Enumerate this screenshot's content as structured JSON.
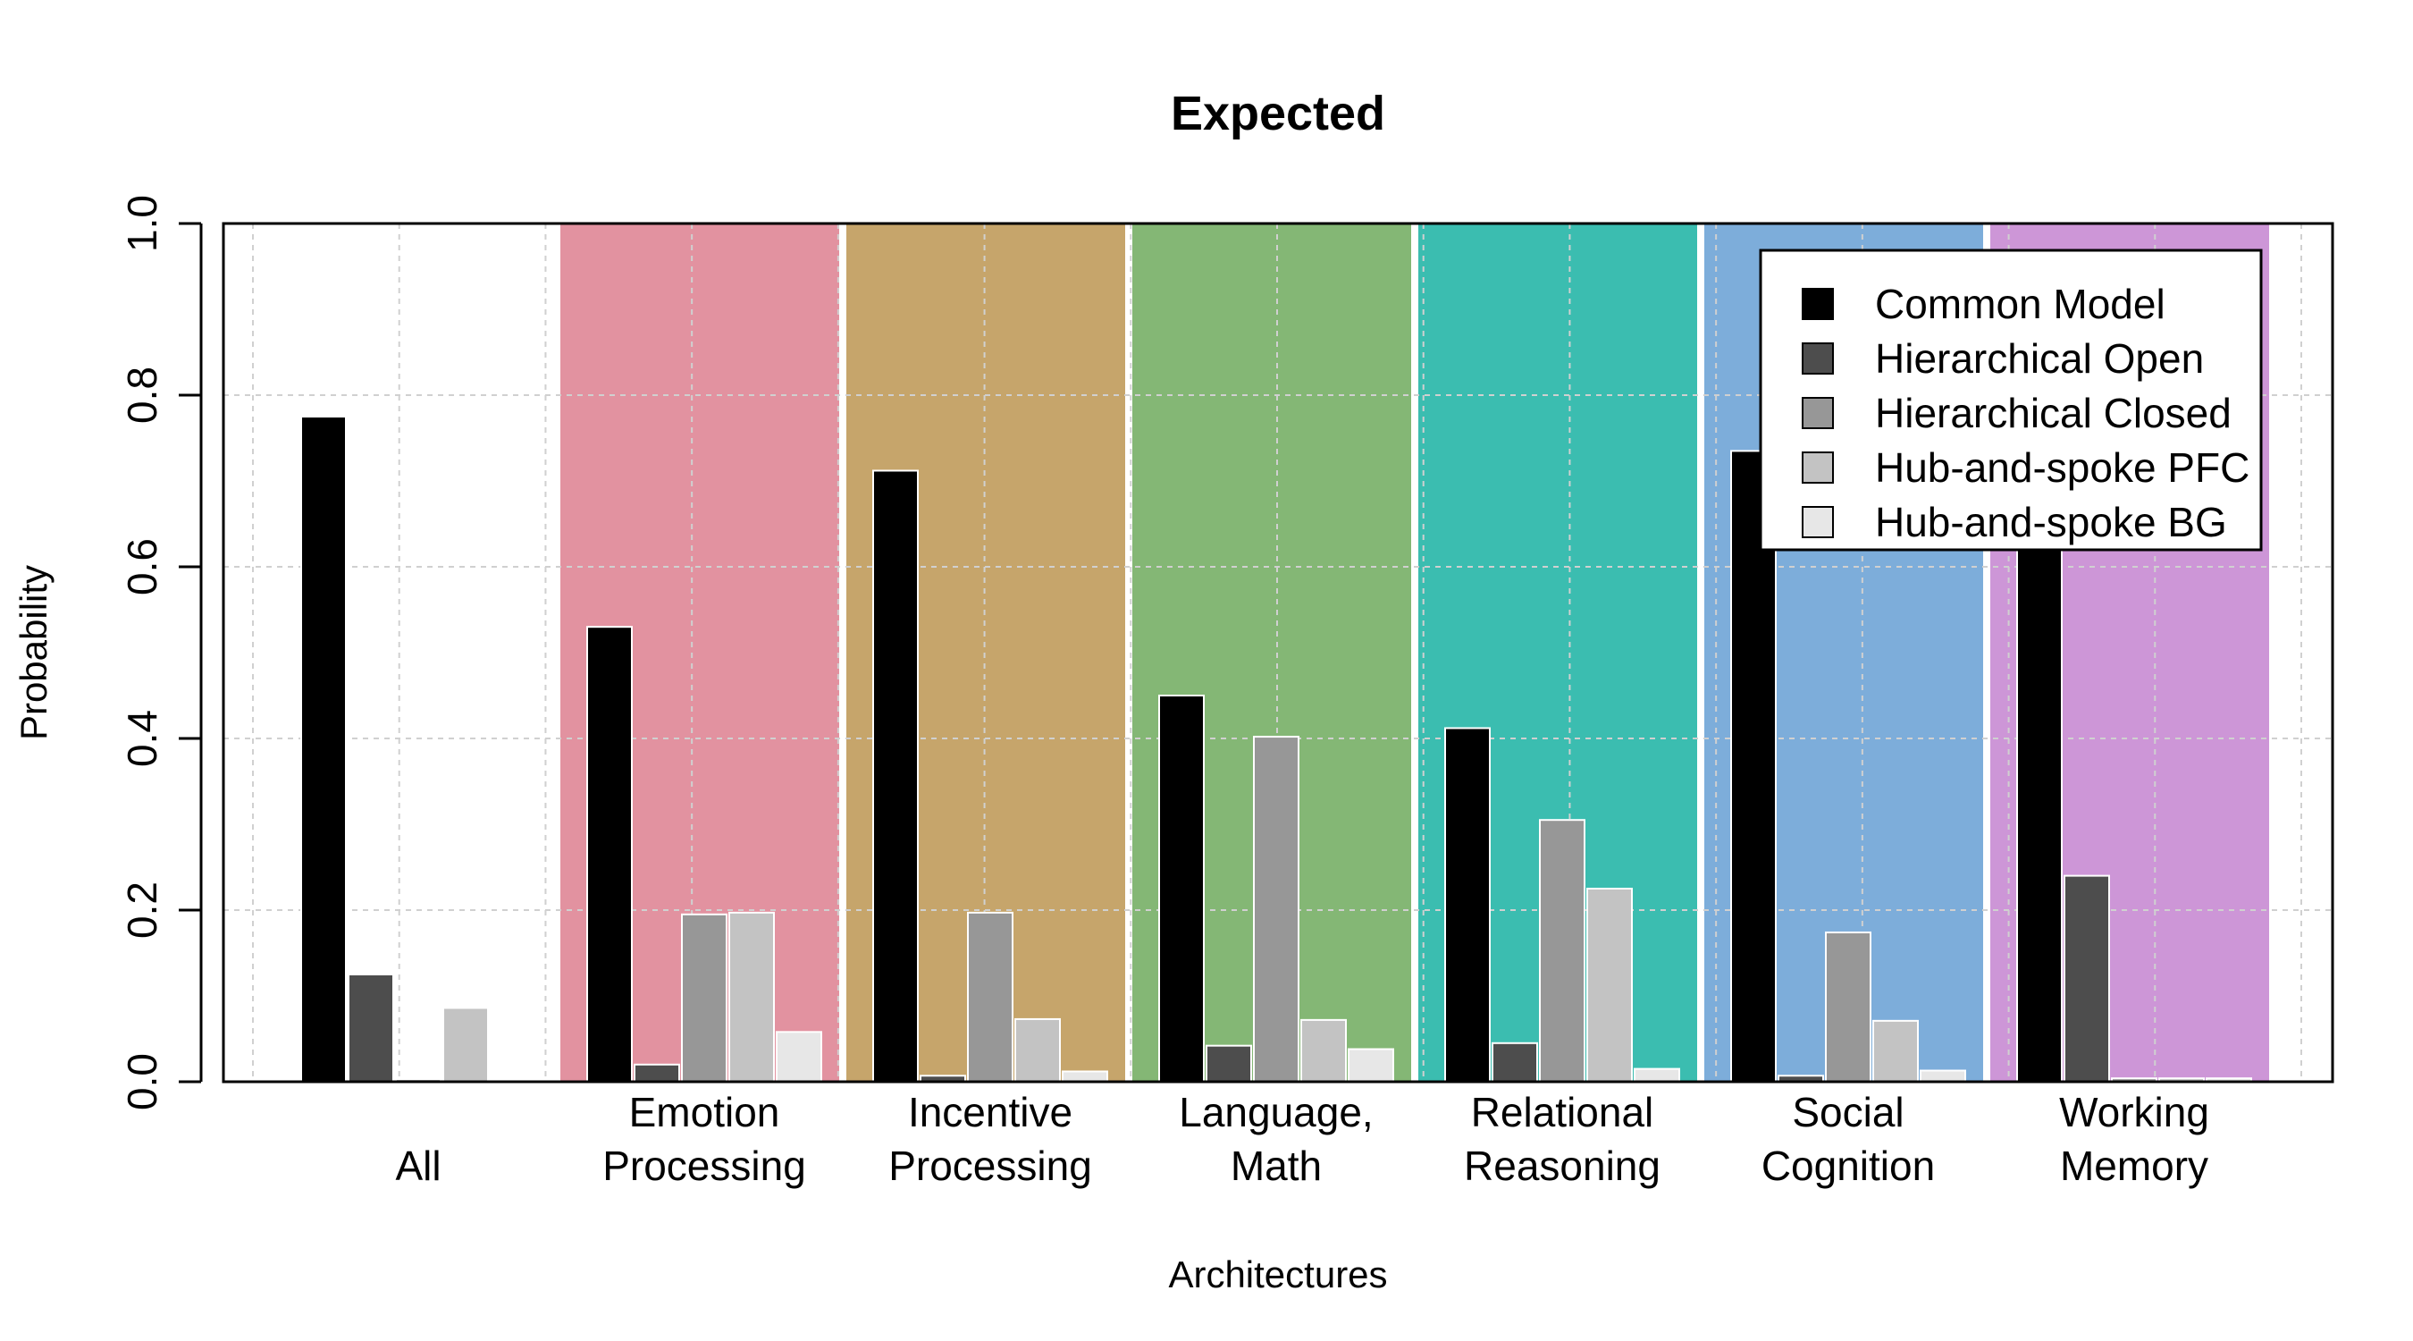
{
  "chart_data": {
    "type": "bar",
    "title": "Expected",
    "xlabel": "Architectures",
    "ylabel": "Probability",
    "ylim": [
      0,
      1
    ],
    "yticks": [
      "0.0",
      "0.2",
      "0.4",
      "0.6",
      "0.8",
      "1.0"
    ],
    "grid": true,
    "legend_position": "top-right",
    "categories": [
      [
        "All"
      ],
      [
        "Emotion",
        "Processing"
      ],
      [
        "Incentive",
        "Processing"
      ],
      [
        "Language,",
        "Math"
      ],
      [
        "Relational",
        "Reasoning"
      ],
      [
        "Social",
        "Cognition"
      ],
      [
        "Working",
        "Memory"
      ]
    ],
    "background_colors": [
      "#ffffff",
      "#e292a0",
      "#c6a56b",
      "#84b775",
      "#3bbdb0",
      "#7dadda",
      "#cd96d7"
    ],
    "series": [
      {
        "name": "Common Model",
        "color": "#000000",
        "values": [
          0.775,
          0.53,
          0.712,
          0.45,
          0.412,
          0.735,
          0.64
        ]
      },
      {
        "name": "Hierarchical Open",
        "color": "#4d4d4d",
        "values": [
          0.125,
          0.02,
          0.007,
          0.042,
          0.045,
          0.007,
          0.24
        ]
      },
      {
        "name": "Hierarchical Closed",
        "color": "#979797",
        "values": [
          0.003,
          0.195,
          0.197,
          0.402,
          0.305,
          0.174,
          0.004
        ]
      },
      {
        "name": "Hub-and-spoke PFC",
        "color": "#c3c3c3",
        "values": [
          0.086,
          0.197,
          0.073,
          0.072,
          0.225,
          0.071,
          0.004
        ]
      },
      {
        "name": "Hub-and-spoke BG",
        "color": "#e7e7e7",
        "values": [
          0.001,
          0.058,
          0.012,
          0.038,
          0.015,
          0.013,
          0.004
        ]
      }
    ]
  }
}
